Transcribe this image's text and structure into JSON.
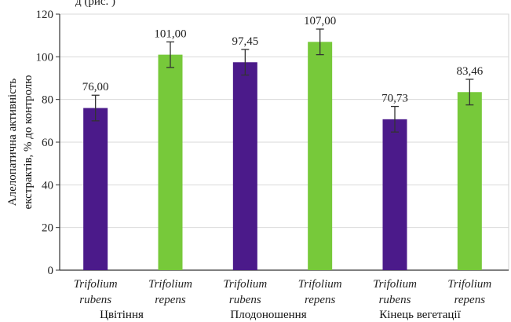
{
  "header_fragment": "д (рис. )",
  "chart_data": {
    "type": "bar",
    "ylabel_lines": [
      "Алелопатична активність",
      "екстрактів, % до контролю"
    ],
    "ylim": [
      0,
      120
    ],
    "yticks": [
      0,
      20,
      40,
      60,
      80,
      100,
      120
    ],
    "grid": true,
    "bars": [
      {
        "line1": "Trifolium",
        "line2": "rubens",
        "value": 76.0,
        "label": "76,00",
        "error": 6,
        "color": "#4b1a8a"
      },
      {
        "line1": "Trifolium",
        "line2": "repens",
        "value": 101.0,
        "label": "101,00",
        "error": 6,
        "color": "#77c93a"
      },
      {
        "line1": "Trifolium",
        "line2": "rubens",
        "value": 97.45,
        "label": "97,45",
        "error": 6,
        "color": "#4b1a8a"
      },
      {
        "line1": "Trifolium",
        "line2": "repens",
        "value": 107.0,
        "label": "107,00",
        "error": 6,
        "color": "#77c93a"
      },
      {
        "line1": "Trifolium",
        "line2": "rubens",
        "value": 70.73,
        "label": "70,73",
        "error": 6,
        "color": "#4b1a8a"
      },
      {
        "line1": "Trifolium",
        "line2": "repens",
        "value": 83.46,
        "label": "83,46",
        "error": 6,
        "color": "#77c93a"
      }
    ],
    "groups": [
      "Цвітіння",
      "Плодоношення",
      "Кінець вегетації"
    ]
  }
}
